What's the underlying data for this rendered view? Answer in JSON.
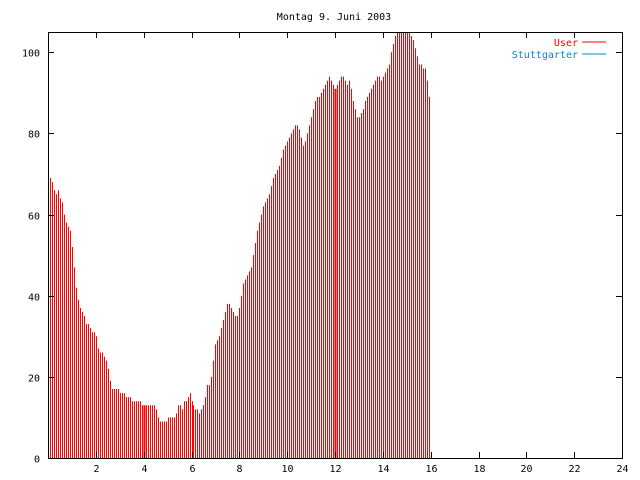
{
  "chart_data": {
    "type": "bar",
    "title": "Montag 9. Juni 2003",
    "xlabel": "",
    "ylabel": "",
    "xlim": [
      0,
      24
    ],
    "ylim": [
      0,
      105
    ],
    "x_ticks": [
      2,
      4,
      6,
      8,
      10,
      12,
      14,
      16,
      18,
      20,
      22,
      24
    ],
    "y_ticks": [
      0,
      20,
      40,
      60,
      80,
      100
    ],
    "grid": false,
    "legend_position": "top-right",
    "series": [
      {
        "name": "User",
        "color": "#ff0000",
        "bar_interval_minutes": 5,
        "values": [
          73,
          69,
          68,
          66,
          65,
          66,
          64,
          63,
          60,
          58,
          57,
          56,
          52,
          47,
          42,
          39,
          37,
          36,
          35,
          33,
          33,
          32,
          31,
          31,
          30,
          27,
          26,
          26,
          25,
          24,
          22,
          19,
          17,
          17,
          17,
          17,
          16,
          16,
          16,
          15,
          15,
          15,
          14,
          14,
          14,
          14,
          14,
          13,
          13,
          13,
          13,
          13,
          13,
          13,
          12,
          10,
          9,
          9,
          9,
          9,
          10,
          10,
          10,
          10,
          11,
          13,
          13,
          12,
          14,
          14,
          15,
          16,
          14,
          13,
          12,
          12,
          11,
          12,
          13,
          15,
          18,
          18,
          20,
          24,
          28,
          29,
          30,
          32,
          34,
          36,
          38,
          38,
          37,
          36,
          35,
          35,
          37,
          40,
          43,
          44,
          45,
          46,
          47,
          50,
          53,
          56,
          58,
          60,
          62,
          63,
          64,
          65,
          67,
          69,
          70,
          71,
          72,
          74,
          76,
          77,
          78,
          79,
          80,
          81,
          82,
          82,
          81,
          79,
          77,
          78,
          80,
          82,
          84,
          86,
          88,
          89,
          89,
          90,
          91,
          92,
          93,
          94,
          93,
          92,
          91,
          92,
          93,
          94,
          94,
          93,
          92,
          93,
          91,
          88,
          86,
          84,
          84,
          85,
          86,
          88,
          89,
          90,
          91,
          92,
          93,
          94,
          94,
          93,
          94,
          95,
          96,
          97,
          100,
          102,
          104,
          105,
          105,
          105,
          105,
          105,
          105,
          105,
          104,
          103,
          101,
          99,
          97,
          97,
          96,
          96,
          93,
          89
        ],
        "highlight_indices": [
          48,
          144,
          240
        ]
      },
      {
        "name": "Stuttgarter",
        "color": "#0088cc",
        "values": []
      }
    ]
  }
}
